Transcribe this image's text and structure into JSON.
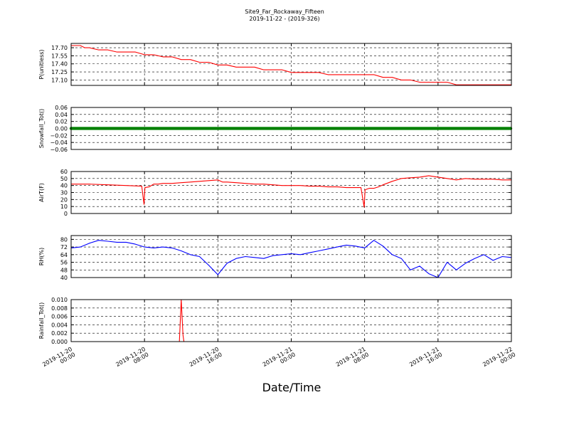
{
  "title": {
    "line1": "Site9_Far_Rockaway_Fifteen",
    "line2": "2019-11-22 - (2019-326)"
  },
  "chart_data": [
    {
      "type": "line",
      "ylabel": "P(unitless)",
      "color": "#ff0000",
      "ylim": [
        17.0,
        17.78
      ],
      "yticks": [
        "17.10",
        "17.25",
        "17.40",
        "17.55",
        "17.70"
      ],
      "xlim": [
        0,
        48
      ],
      "x": [
        0,
        0.5,
        1,
        1.5,
        2,
        3,
        4,
        5,
        6,
        7,
        8,
        9,
        10,
        11,
        12,
        13,
        14,
        15,
        16,
        17,
        18,
        19,
        20,
        21,
        22,
        23,
        24,
        25,
        26,
        27,
        28,
        29,
        30,
        31,
        32,
        33,
        34,
        35,
        36,
        37,
        38,
        39,
        40,
        41,
        42,
        43,
        44,
        45,
        46,
        47,
        48
      ],
      "values": [
        17.74,
        17.74,
        17.74,
        17.7,
        17.7,
        17.66,
        17.66,
        17.62,
        17.62,
        17.62,
        17.57,
        17.57,
        17.53,
        17.53,
        17.48,
        17.48,
        17.43,
        17.43,
        17.38,
        17.38,
        17.34,
        17.34,
        17.34,
        17.29,
        17.29,
        17.29,
        17.24,
        17.24,
        17.24,
        17.24,
        17.2,
        17.2,
        17.2,
        17.2,
        17.2,
        17.2,
        17.15,
        17.15,
        17.1,
        17.1,
        17.06,
        17.06,
        17.06,
        17.06,
        17.01,
        17.01,
        17.01,
        17.01,
        17.01,
        17.01,
        17.01
      ]
    },
    {
      "type": "scatter",
      "ylabel": "Snowfall_Tot()",
      "color": "#008000",
      "ylim": [
        -0.06,
        0.06
      ],
      "yticks": [
        "−0.06",
        "−0.04",
        "−0.02",
        "0.00",
        "0.02",
        "0.04",
        "0.06"
      ],
      "xlim": [
        0,
        48
      ],
      "constant_value": 0.0
    },
    {
      "type": "line",
      "ylabel": "AirT(F)",
      "color": "#ff0000",
      "ylim": [
        0,
        60
      ],
      "yticks": [
        "0",
        "10",
        "20",
        "30",
        "40",
        "50",
        "60"
      ],
      "xlim": [
        0,
        48
      ],
      "x": [
        0,
        2,
        4,
        6,
        7.7,
        7.95,
        8.05,
        8.5,
        9,
        9.5,
        10,
        11,
        12,
        13,
        14,
        15,
        16,
        16.5,
        17,
        18,
        19,
        20,
        21,
        22,
        23,
        24,
        25,
        26,
        27,
        28,
        29,
        30,
        31.6,
        31.95,
        32.05,
        32.5,
        33,
        33.5,
        34,
        35,
        36,
        37,
        38,
        39,
        40,
        41,
        42,
        43,
        44,
        45,
        46,
        47,
        48
      ],
      "values": [
        42,
        42,
        41,
        40,
        39,
        13,
        37,
        38,
        42,
        42,
        43,
        43,
        44,
        45,
        46,
        47,
        48,
        45,
        45,
        44,
        43,
        42,
        42,
        41,
        40,
        40,
        40,
        39,
        39,
        38,
        38,
        37,
        37,
        9,
        34,
        36,
        36,
        38,
        41,
        46,
        50,
        51,
        52,
        54,
        52,
        50,
        48,
        50,
        49,
        49,
        49,
        48,
        48
      ]
    },
    {
      "type": "line",
      "ylabel": "RH(%)",
      "color": "#0000ff",
      "ylim": [
        40,
        84
      ],
      "yticks": [
        "40",
        "48",
        "56",
        "64",
        "72",
        "80"
      ],
      "xlim": [
        0,
        48
      ],
      "x": [
        0,
        1,
        2,
        3,
        4,
        5,
        6,
        7,
        8,
        9,
        10,
        11,
        12,
        13,
        14,
        15,
        16,
        17,
        18,
        19,
        20,
        21,
        22,
        23,
        24,
        25,
        26,
        27,
        28,
        29,
        30,
        31,
        32,
        33,
        34,
        35,
        36,
        37,
        38,
        39,
        40,
        41,
        42,
        43,
        44,
        45,
        46,
        47,
        48
      ],
      "values": [
        71,
        72,
        76,
        79,
        78,
        77,
        77,
        75,
        72,
        71,
        72,
        71,
        68,
        64,
        62,
        53,
        43,
        55,
        60,
        62,
        61,
        60,
        63,
        64,
        65,
        64,
        66,
        68,
        70,
        72,
        74,
        73,
        71,
        79,
        73,
        64,
        60,
        48,
        52,
        44,
        40,
        56,
        48,
        55,
        60,
        64,
        58,
        62,
        61
      ]
    },
    {
      "type": "line",
      "ylabel": "Rainfall_Tot()",
      "color": "#ff0000",
      "ylim": [
        0,
        0.01
      ],
      "yticks": [
        "0.000",
        "0.002",
        "0.004",
        "0.006",
        "0.008",
        "0.010"
      ],
      "xlim": [
        0,
        48
      ],
      "x": [
        0,
        11.8,
        12.0,
        12.2,
        12.3,
        48
      ],
      "values": [
        0,
        0,
        0.01,
        0.0015,
        0,
        0
      ]
    }
  ],
  "xaxis": {
    "label": "Date/Time",
    "ticks": [
      {
        "x": 0,
        "line1": "2019-11-20",
        "line2": "00:00"
      },
      {
        "x": 8,
        "line1": "2019-11-20",
        "line2": "08:00"
      },
      {
        "x": 16,
        "line1": "2019-11-20",
        "line2": "16:00"
      },
      {
        "x": 24,
        "line1": "2019-11-21",
        "line2": "00:00"
      },
      {
        "x": 32,
        "line1": "2019-11-21",
        "line2": "08:00"
      },
      {
        "x": 40,
        "line1": "2019-11-21",
        "line2": "16:00"
      },
      {
        "x": 48,
        "line1": "2019-11-22",
        "line2": "00:00"
      }
    ]
  }
}
